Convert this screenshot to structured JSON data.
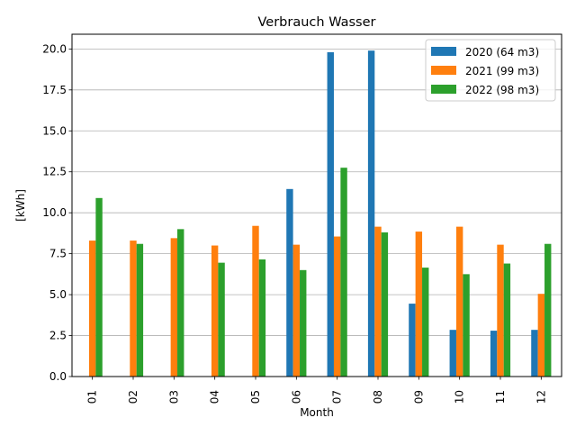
{
  "chart_data": {
    "type": "bar",
    "title": "Verbrauch Wasser",
    "xlabel": "Month",
    "ylabel": "[kWh]",
    "categories": [
      "01",
      "02",
      "03",
      "04",
      "05",
      "06",
      "07",
      "08",
      "09",
      "10",
      "11",
      "12"
    ],
    "ylim": [
      0,
      20.9
    ],
    "yticks": [
      "0.0",
      "2.5",
      "5.0",
      "7.5",
      "10.0",
      "12.5",
      "15.0",
      "17.5",
      "20.0"
    ],
    "grid": "horizontal",
    "legend_position": "top-right",
    "series": [
      {
        "name": "2020 (64 m3)",
        "color": "#1f77b4",
        "values": [
          0,
          0,
          0,
          0,
          0,
          11.45,
          19.8,
          19.9,
          4.45,
          2.85,
          2.8,
          2.85
        ]
      },
      {
        "name": "2021 (99 m3)",
        "color": "#ff7f0e",
        "values": [
          8.3,
          8.3,
          8.45,
          8.0,
          9.2,
          8.05,
          8.55,
          9.15,
          8.85,
          9.15,
          8.05,
          5.05
        ]
      },
      {
        "name": "2022 (98 m3)",
        "color": "#2ca02c",
        "values": [
          10.9,
          8.1,
          9.0,
          6.95,
          7.15,
          6.5,
          12.75,
          8.8,
          6.65,
          6.25,
          6.9,
          8.1
        ]
      }
    ]
  }
}
